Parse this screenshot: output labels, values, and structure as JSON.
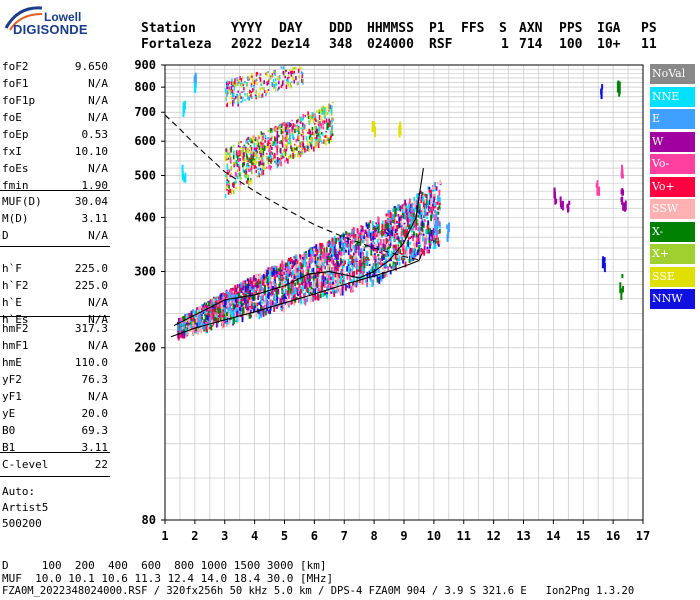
{
  "logo": {
    "line1": "Lowell",
    "line2": "DIGISONDE"
  },
  "header": {
    "labels": [
      "Station",
      "YYYY",
      "DAY",
      "DDD",
      "HHMMSS",
      "P1",
      "FFS",
      "S",
      "AXN",
      "PPS",
      "IGA",
      "PS"
    ],
    "values": [
      "Fortaleza",
      "2022",
      "Dez14",
      "348",
      "024000",
      "RSF",
      "1",
      "714",
      "100",
      "10+",
      "11"
    ]
  },
  "params_group1": [
    {
      "name": "foF2",
      "value": "9.650"
    },
    {
      "name": "foF1",
      "value": "N/A"
    },
    {
      "name": "foF1p",
      "value": "N/A"
    },
    {
      "name": "foE",
      "value": "N/A"
    },
    {
      "name": "foEp",
      "value": "0.53"
    },
    {
      "name": "fxI",
      "value": "10.10"
    },
    {
      "name": "foEs",
      "value": "N/A"
    },
    {
      "name": "fmin",
      "value": "1.90"
    }
  ],
  "params_group2": [
    {
      "name": "MUF(D)",
      "value": "30.04"
    },
    {
      "name": "M(D)",
      "value": "3.11"
    },
    {
      "name": "D",
      "value": "N/A"
    }
  ],
  "params_group3": [
    {
      "name": "h`F",
      "value": "225.0"
    },
    {
      "name": "h`F2",
      "value": "225.0"
    },
    {
      "name": "h`E",
      "value": "N/A"
    },
    {
      "name": "h`Es",
      "value": "N/A"
    }
  ],
  "params_group4": [
    {
      "name": "hmF2",
      "value": "317.3"
    },
    {
      "name": "hmF1",
      "value": "N/A"
    },
    {
      "name": "hmE",
      "value": "110.0"
    },
    {
      "name": "yF2",
      "value": "76.3"
    },
    {
      "name": "yF1",
      "value": "N/A"
    },
    {
      "name": "yE",
      "value": "20.0"
    },
    {
      "name": "B0",
      "value": "69.3"
    },
    {
      "name": "B1",
      "value": "3.11"
    }
  ],
  "params_group5": [
    {
      "name": "C-level",
      "value": "22"
    }
  ],
  "auto": {
    "line1": "Auto:",
    "line2": "Artist5",
    "line3": "500200"
  },
  "footer": {
    "d_line": "D     100  200  400  600  800 1000 1500 3000 [km]",
    "muf_line": "MUF  10.0 10.1 10.6 11.3 12.4 14.0 18.4 30.0 [MHz]",
    "info_line": "FZA0M_2022348024000.RSF / 320fx256h 50 kHz 5.0 km / DPS-4 FZA0M 904 / 3.9 S 321.6 E   Ion2Png 1.3.20"
  },
  "legend": [
    {
      "label": "NoVal",
      "color": "#888888"
    },
    {
      "label": "NNE",
      "color": "#00e0ff"
    },
    {
      "label": "E",
      "color": "#40a0ff"
    },
    {
      "label": "W",
      "color": "#a000a0"
    },
    {
      "label": "Vo-",
      "color": "#ff40a0"
    },
    {
      "label": "Vo+",
      "color": "#ff0040"
    },
    {
      "label": "SSW",
      "color": "#ffb0b0"
    },
    {
      "label": "X-",
      "color": "#008000"
    },
    {
      "label": "X+",
      "color": "#a0d030"
    },
    {
      "label": "SSE",
      "color": "#e0e000"
    },
    {
      "label": "NNW",
      "color": "#1010e0"
    }
  ],
  "chart_data": {
    "type": "scatter",
    "title": "",
    "xlabel": "",
    "ylabel": "",
    "xlim": [
      1,
      17
    ],
    "ylim": [
      80,
      900
    ],
    "y_scale": "log",
    "x_ticks": [
      "1",
      "2",
      "3",
      "4",
      "5",
      "6",
      "7",
      "8",
      "9",
      "10",
      "11",
      "12",
      "13",
      "14",
      "15",
      "16",
      "17"
    ],
    "y_ticks": [
      "80",
      "200",
      "300",
      "400",
      "500",
      "600",
      "700",
      "800",
      "900"
    ],
    "grid": true,
    "profile_line": [
      [
        1.2,
        212
      ],
      [
        2,
        222
      ],
      [
        3,
        232
      ],
      [
        4,
        242
      ],
      [
        5,
        254
      ],
      [
        6,
        266
      ],
      [
        7,
        280
      ],
      [
        8,
        293
      ],
      [
        8.8,
        305
      ],
      [
        9.2,
        312
      ],
      [
        9.5,
        318
      ],
      [
        9.6,
        330
      ]
    ],
    "muf_curve": [
      [
        1,
        690
      ],
      [
        1.5,
        640
      ],
      [
        2,
        590
      ],
      [
        3,
        510
      ],
      [
        4,
        460
      ],
      [
        5,
        420
      ],
      [
        6,
        385
      ],
      [
        7,
        360
      ],
      [
        8,
        340
      ],
      [
        9,
        325
      ],
      [
        9.6,
        318
      ]
    ],
    "trace_line": [
      [
        1.3,
        225
      ],
      [
        2,
        238
      ],
      [
        3,
        258
      ],
      [
        4,
        265
      ],
      [
        5,
        278
      ],
      [
        5.8,
        296
      ],
      [
        6.5,
        300
      ],
      [
        7,
        295
      ],
      [
        7.5,
        290
      ],
      [
        8,
        300
      ],
      [
        8.5,
        318
      ],
      [
        9,
        350
      ],
      [
        9.4,
        400
      ],
      [
        9.65,
        520
      ]
    ],
    "echo_regions": [
      {
        "name": "NNE",
        "x": [
          1.5,
          10.0
        ],
        "y": [
          220,
          480
        ]
      },
      {
        "name": "X-",
        "x": [
          1.5,
          10.2
        ],
        "y": [
          215,
          420
        ]
      },
      {
        "name": "Vo+",
        "x": [
          1.4,
          10.0
        ],
        "y": [
          220,
          500
        ]
      },
      {
        "name": "E",
        "x": [
          1.5,
          10.0
        ],
        "y": [
          230,
          430
        ]
      },
      {
        "name": "W",
        "x": [
          1.5,
          10.0
        ],
        "y": [
          220,
          470
        ]
      },
      {
        "name": "SSE",
        "x": [
          3,
          9.5
        ],
        "y": [
          450,
          900
        ]
      },
      {
        "name": "X+",
        "x": [
          2,
          9
        ],
        "y": [
          500,
          900
        ]
      }
    ]
  }
}
